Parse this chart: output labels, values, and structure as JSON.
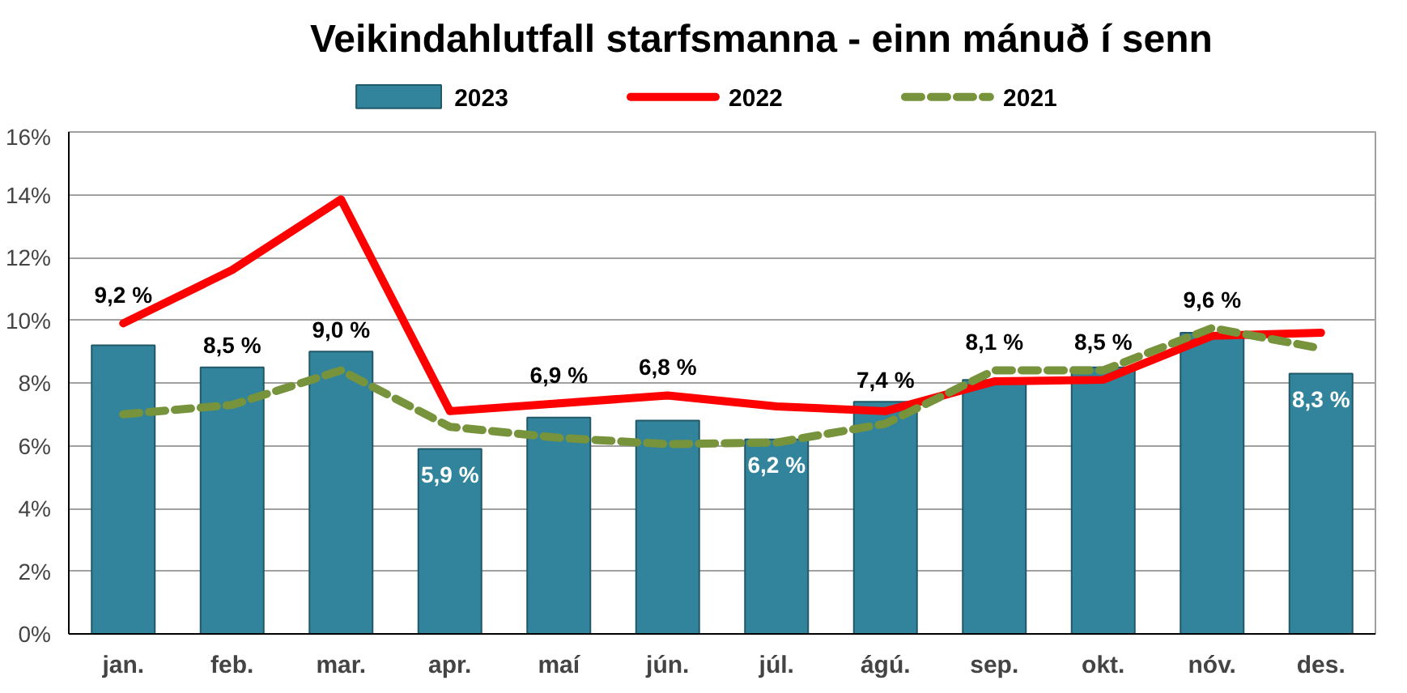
{
  "chart_data": {
    "type": "bar",
    "title": "Veikindahlutfall starfsmanna - einn mánuð í senn",
    "categories": [
      "jan.",
      "feb.",
      "mar.",
      "apr.",
      "maí",
      "jún.",
      "júl.",
      "ágú.",
      "sep.",
      "okt.",
      "nóv.",
      "des."
    ],
    "series": [
      {
        "name": "2023",
        "color": "#31849b",
        "values": [
          9.2,
          8.5,
          9.0,
          5.9,
          6.9,
          6.8,
          6.2,
          7.4,
          8.1,
          8.5,
          9.6,
          8.3
        ],
        "value_labels": [
          "9,2 %",
          "8,5 %",
          "9,0 %",
          "5,9 %",
          "6,9 %",
          "6,8 %",
          "6,2 %",
          "7,4 %",
          "8,1 %",
          "8,5 %",
          "9,6 %",
          "8,3 %"
        ]
      },
      {
        "name": "2022",
        "type": "line",
        "color": "#ff0000",
        "line_style": "solid",
        "values": [
          9.9,
          11.6,
          13.85,
          7.1,
          7.35,
          7.6,
          7.25,
          7.1,
          8.05,
          8.1,
          9.5,
          9.6
        ]
      },
      {
        "name": "2021",
        "type": "line",
        "color": "#77933c",
        "line_style": "dashed",
        "values": [
          7.0,
          7.3,
          8.4,
          6.6,
          6.25,
          6.05,
          6.1,
          6.7,
          8.4,
          8.4,
          9.75,
          9.1
        ]
      }
    ],
    "ylim": [
      0,
      16
    ],
    "yticks": [
      {
        "value": 0,
        "label": "0%"
      },
      {
        "value": 2,
        "label": "2%"
      },
      {
        "value": 4,
        "label": "4%"
      },
      {
        "value": 6,
        "label": "6%"
      },
      {
        "value": 8,
        "label": "8%"
      },
      {
        "value": 10,
        "label": "10%"
      },
      {
        "value": 12,
        "label": "12%"
      },
      {
        "value": 14,
        "label": "14%"
      },
      {
        "value": 16,
        "label": "16%"
      }
    ],
    "grid": "y",
    "legend": "top",
    "marker": "none"
  }
}
